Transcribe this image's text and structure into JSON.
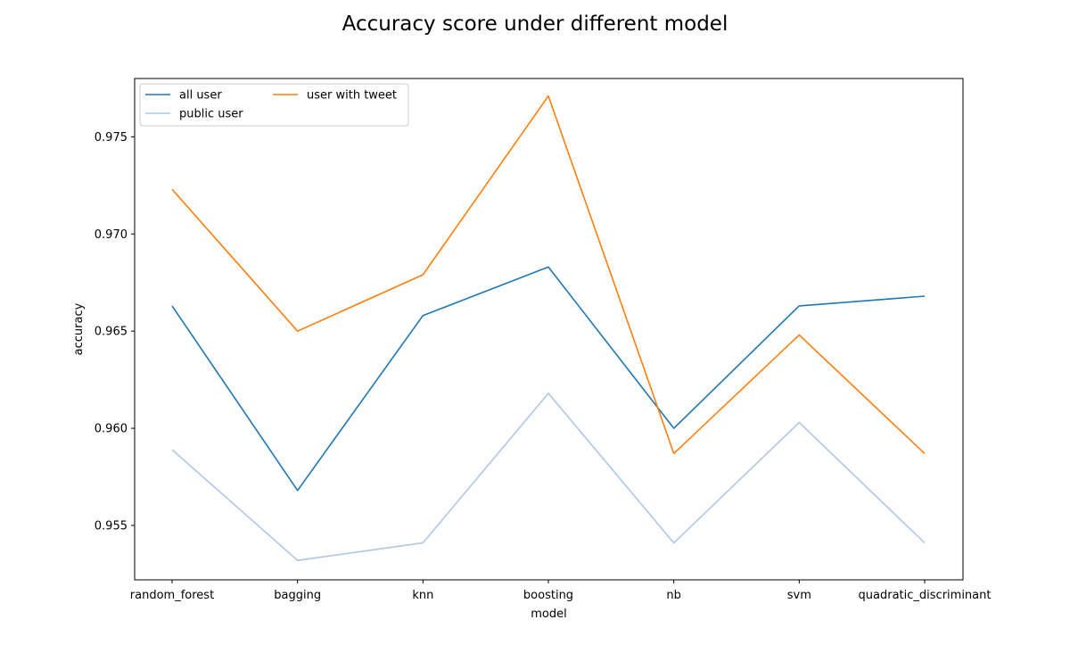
{
  "chart_data": {
    "type": "line",
    "title": "Accuracy score under different model",
    "xlabel": "model",
    "ylabel": "accuracy",
    "categories": [
      "random_forest",
      "bagging",
      "knn",
      "boosting",
      "nb",
      "svm",
      "quadratic_discriminant"
    ],
    "ylim": [
      0.9522,
      0.978
    ],
    "yticks": [
      0.955,
      0.96,
      0.965,
      0.97,
      0.975
    ],
    "ytick_labels": [
      "0.955",
      "0.960",
      "0.965",
      "0.970",
      "0.975"
    ],
    "grid": false,
    "legend": {
      "placement": "upper-left",
      "columns": 2
    },
    "series": [
      {
        "name": "all user",
        "color": "#1f77b4",
        "values": [
          0.9663,
          0.9568,
          0.9658,
          0.9683,
          0.96,
          0.9663,
          0.9668
        ]
      },
      {
        "name": "public user",
        "color": "#aec7e8",
        "values": [
          0.9589,
          0.9532,
          0.9541,
          0.9618,
          0.9541,
          0.9603,
          0.9541
        ]
      },
      {
        "name": "user with tweet",
        "color": "#ff7f0e",
        "values": [
          0.9723,
          0.965,
          0.9679,
          0.9771,
          0.9587,
          0.9648,
          0.9587
        ]
      }
    ]
  }
}
